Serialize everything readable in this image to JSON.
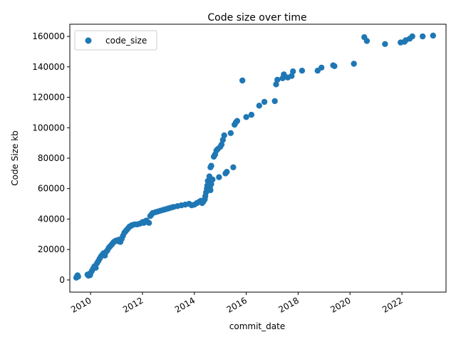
{
  "chart_data": {
    "type": "scatter",
    "title": "Code size over time",
    "xlabel": "commit_date",
    "ylabel": "Code Size kb",
    "x_ticks": [
      "2010",
      "2012",
      "2014",
      "2016",
      "2018",
      "2020",
      "2022"
    ],
    "y_ticks": [
      "0",
      "20000",
      "40000",
      "60000",
      "80000",
      "100000",
      "120000",
      "140000",
      "160000"
    ],
    "xlim": [
      2009.2,
      2023.7
    ],
    "ylim": [
      -8000,
      168000
    ],
    "grid": false,
    "legend": {
      "position": "top-left",
      "entries": [
        "code_size"
      ]
    },
    "series": [
      {
        "name": "code_size",
        "color": "#1f77b4",
        "points": [
          [
            2009.45,
            1500
          ],
          [
            2009.48,
            2500
          ],
          [
            2009.52,
            2200
          ],
          [
            2009.5,
            3000
          ],
          [
            2009.88,
            3500
          ],
          [
            2009.92,
            2800
          ],
          [
            2009.95,
            4000
          ],
          [
            2009.98,
            3200
          ],
          [
            2010.0,
            4500
          ],
          [
            2010.05,
            6000
          ],
          [
            2010.1,
            7500
          ],
          [
            2010.15,
            9000
          ],
          [
            2010.2,
            8000
          ],
          [
            2010.25,
            11000
          ],
          [
            2010.3,
            12500
          ],
          [
            2010.35,
            14000
          ],
          [
            2010.4,
            15500
          ],
          [
            2010.45,
            16500
          ],
          [
            2010.5,
            17500
          ],
          [
            2010.55,
            16000
          ],
          [
            2010.6,
            18500
          ],
          [
            2010.65,
            19500
          ],
          [
            2010.7,
            21000
          ],
          [
            2010.75,
            22000
          ],
          [
            2010.8,
            23000
          ],
          [
            2010.85,
            24000
          ],
          [
            2010.9,
            25000
          ],
          [
            2010.95,
            25500
          ],
          [
            2011.0,
            26000
          ],
          [
            2011.05,
            25500
          ],
          [
            2011.1,
            26500
          ],
          [
            2011.15,
            25000
          ],
          [
            2011.2,
            27000
          ],
          [
            2011.25,
            29000
          ],
          [
            2011.3,
            31000
          ],
          [
            2011.35,
            32000
          ],
          [
            2011.4,
            33000
          ],
          [
            2011.45,
            34000
          ],
          [
            2011.5,
            35000
          ],
          [
            2011.55,
            35500
          ],
          [
            2011.6,
            36000
          ],
          [
            2011.7,
            36500
          ],
          [
            2011.8,
            36500
          ],
          [
            2011.9,
            37000
          ],
          [
            2012.0,
            38000
          ],
          [
            2012.05,
            37500
          ],
          [
            2012.1,
            38500
          ],
          [
            2012.15,
            39000
          ],
          [
            2012.2,
            38000
          ],
          [
            2012.25,
            37500
          ],
          [
            2012.3,
            42000
          ],
          [
            2012.35,
            43000
          ],
          [
            2012.4,
            44000
          ],
          [
            2012.5,
            44500
          ],
          [
            2012.6,
            45000
          ],
          [
            2012.7,
            45500
          ],
          [
            2012.8,
            46000
          ],
          [
            2012.9,
            46500
          ],
          [
            2013.0,
            47000
          ],
          [
            2013.1,
            47500
          ],
          [
            2013.2,
            48000
          ],
          [
            2013.35,
            48500
          ],
          [
            2013.5,
            49000
          ],
          [
            2013.65,
            49500
          ],
          [
            2013.8,
            50000
          ],
          [
            2013.9,
            49000
          ],
          [
            2014.0,
            49500
          ],
          [
            2014.1,
            50500
          ],
          [
            2014.2,
            51500
          ],
          [
            2014.25,
            52000
          ],
          [
            2014.3,
            50500
          ],
          [
            2014.35,
            51500
          ],
          [
            2014.4,
            53000
          ],
          [
            2014.42,
            55000
          ],
          [
            2014.45,
            57500
          ],
          [
            2014.48,
            60000
          ],
          [
            2014.5,
            62000
          ],
          [
            2014.52,
            65000
          ],
          [
            2014.55,
            64000
          ],
          [
            2014.58,
            68000
          ],
          [
            2014.6,
            61000
          ],
          [
            2014.62,
            59000
          ],
          [
            2014.65,
            63000
          ],
          [
            2014.62,
            74000
          ],
          [
            2014.65,
            75000
          ],
          [
            2014.7,
            66000
          ],
          [
            2014.75,
            81000
          ],
          [
            2014.8,
            82500
          ],
          [
            2014.85,
            85000
          ],
          [
            2014.9,
            86000
          ],
          [
            2014.95,
            67500
          ],
          [
            2015.0,
            87500
          ],
          [
            2015.05,
            89000
          ],
          [
            2015.1,
            92000
          ],
          [
            2015.15,
            95000
          ],
          [
            2015.2,
            70000
          ],
          [
            2015.25,
            71000
          ],
          [
            2015.4,
            96500
          ],
          [
            2015.5,
            74000
          ],
          [
            2015.55,
            102000
          ],
          [
            2015.6,
            103500
          ],
          [
            2015.65,
            104500
          ],
          [
            2015.85,
            131000
          ],
          [
            2016.0,
            107000
          ],
          [
            2016.2,
            108500
          ],
          [
            2016.5,
            114500
          ],
          [
            2016.7,
            117000
          ],
          [
            2017.1,
            117500
          ],
          [
            2017.15,
            128500
          ],
          [
            2017.2,
            131500
          ],
          [
            2017.4,
            132500
          ],
          [
            2017.45,
            135000
          ],
          [
            2017.6,
            133000
          ],
          [
            2017.75,
            134000
          ],
          [
            2017.8,
            137000
          ],
          [
            2018.15,
            137500
          ],
          [
            2018.75,
            137500
          ],
          [
            2018.9,
            139500
          ],
          [
            2019.35,
            141000
          ],
          [
            2019.4,
            140500
          ],
          [
            2020.15,
            142000
          ],
          [
            2020.55,
            159500
          ],
          [
            2020.65,
            157000
          ],
          [
            2021.35,
            155000
          ],
          [
            2021.95,
            156000
          ],
          [
            2022.1,
            156500
          ],
          [
            2022.15,
            157500
          ],
          [
            2022.3,
            158500
          ],
          [
            2022.4,
            160000
          ],
          [
            2022.8,
            160000
          ],
          [
            2023.2,
            160500
          ]
        ]
      }
    ]
  }
}
